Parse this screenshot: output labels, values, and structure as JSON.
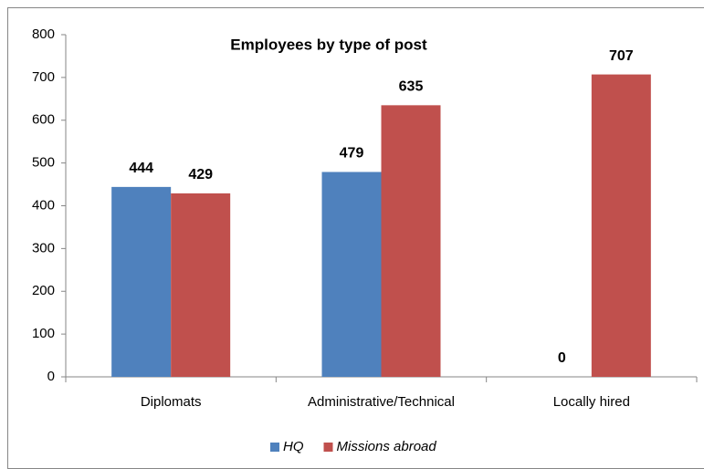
{
  "chart_data": {
    "type": "bar",
    "title": "Employees by type of post",
    "categories": [
      "Diplomats",
      "Administrative/Technical",
      "Locally hired"
    ],
    "series": [
      {
        "name": "HQ",
        "color": "#4f81bd",
        "values": [
          444,
          479,
          0
        ]
      },
      {
        "name": "Missions abroad",
        "color": "#c0504d",
        "values": [
          429,
          635,
          707
        ]
      }
    ],
    "ylim": [
      0,
      800
    ],
    "yticks": [
      0,
      100,
      200,
      300,
      400,
      500,
      600,
      700,
      800
    ],
    "grid": false,
    "legend": "bottom"
  }
}
